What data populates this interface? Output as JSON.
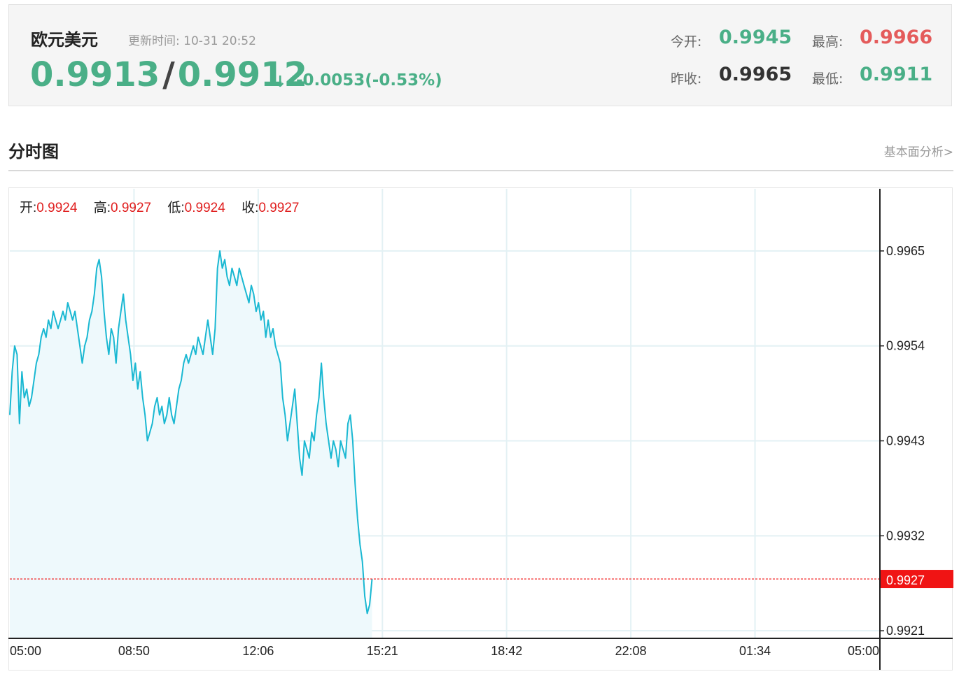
{
  "header": {
    "name": "欧元美元",
    "update_label": "更新时间:",
    "update_time": "10-31 20:52",
    "bid": "0.9913",
    "separator": "/",
    "ask": "0.9912",
    "arrow": "↓",
    "change": "-0.0053(-0.53%)",
    "open_label": "今开:",
    "open": "0.9945",
    "high_label": "最高:",
    "high": "0.9966",
    "prev_close_label": "昨收:",
    "prev_close": "0.9965",
    "low_label": "最低:",
    "low": "0.9911"
  },
  "section": {
    "title": "分时图",
    "link": "基本面分析>"
  },
  "ohlc": {
    "open_label": "开:",
    "open": "0.9924",
    "high_label": "高:",
    "high": "0.9927",
    "low_label": "低:",
    "low": "0.9924",
    "close_label": "收:",
    "close": "0.9927"
  },
  "colors": {
    "line": "#1ab8d2",
    "fill": "#eef9fc",
    "grid": "#e3f1f4",
    "current": "#f01414",
    "up_green": "#4aaf87",
    "high_red": "#e45b5b"
  },
  "chart_data": {
    "type": "line",
    "title": "",
    "xlabel": "",
    "ylabel": "",
    "x_ticks": [
      "05:00",
      "08:50",
      "12:06",
      "15:21",
      "18:42",
      "22:08",
      "01:34",
      "05:00"
    ],
    "y_ticks": [
      0.9965,
      0.9954,
      0.9943,
      0.9932,
      0.9921
    ],
    "y_tick_labels": [
      "0.9965",
      "0.9954",
      "0.9943",
      "0.9932",
      "0.9921"
    ],
    "ylim": [
      0.99202,
      0.99722
    ],
    "current_value": 0.9927,
    "current_label": "0.9927",
    "x_unit": "minutes after 05:00 session start, session length 1440",
    "series": [
      {
        "values": [
          [
            0,
            0.9946
          ],
          [
            4,
            0.9951
          ],
          [
            8,
            0.9954
          ],
          [
            12,
            0.9953
          ],
          [
            16,
            0.9945
          ],
          [
            20,
            0.9951
          ],
          [
            24,
            0.9948
          ],
          [
            28,
            0.9949
          ],
          [
            32,
            0.9947
          ],
          [
            36,
            0.9948
          ],
          [
            40,
            0.995
          ],
          [
            44,
            0.9952
          ],
          [
            48,
            0.9953
          ],
          [
            52,
            0.9955
          ],
          [
            56,
            0.9956
          ],
          [
            60,
            0.9955
          ],
          [
            64,
            0.9957
          ],
          [
            68,
            0.9956
          ],
          [
            72,
            0.9958
          ],
          [
            76,
            0.9957
          ],
          [
            80,
            0.9956
          ],
          [
            84,
            0.9957
          ],
          [
            88,
            0.9958
          ],
          [
            92,
            0.9957
          ],
          [
            96,
            0.9959
          ],
          [
            100,
            0.9958
          ],
          [
            104,
            0.9957
          ],
          [
            108,
            0.9958
          ],
          [
            112,
            0.9956
          ],
          [
            116,
            0.9954
          ],
          [
            120,
            0.9952
          ],
          [
            124,
            0.9954
          ],
          [
            128,
            0.9955
          ],
          [
            132,
            0.9957
          ],
          [
            136,
            0.9958
          ],
          [
            140,
            0.996
          ],
          [
            144,
            0.9963
          ],
          [
            148,
            0.9964
          ],
          [
            152,
            0.9962
          ],
          [
            156,
            0.9958
          ],
          [
            160,
            0.9955
          ],
          [
            164,
            0.9953
          ],
          [
            168,
            0.9956
          ],
          [
            172,
            0.9955
          ],
          [
            176,
            0.9952
          ],
          [
            180,
            0.9956
          ],
          [
            184,
            0.9958
          ],
          [
            188,
            0.996
          ],
          [
            192,
            0.9957
          ],
          [
            196,
            0.9955
          ],
          [
            200,
            0.9953
          ],
          [
            204,
            0.995
          ],
          [
            208,
            0.9952
          ],
          [
            212,
            0.9949
          ],
          [
            216,
            0.9951
          ],
          [
            220,
            0.9948
          ],
          [
            224,
            0.9946
          ],
          [
            228,
            0.9943
          ],
          [
            232,
            0.9944
          ],
          [
            236,
            0.9945
          ],
          [
            240,
            0.9947
          ],
          [
            244,
            0.9948
          ],
          [
            248,
            0.9946
          ],
          [
            252,
            0.9947
          ],
          [
            256,
            0.9945
          ],
          [
            260,
            0.9946
          ],
          [
            264,
            0.9948
          ],
          [
            268,
            0.9946
          ],
          [
            272,
            0.9945
          ],
          [
            276,
            0.9947
          ],
          [
            280,
            0.9949
          ],
          [
            284,
            0.995
          ],
          [
            288,
            0.9952
          ],
          [
            292,
            0.9953
          ],
          [
            296,
            0.9952
          ],
          [
            300,
            0.9953
          ],
          [
            304,
            0.9954
          ],
          [
            308,
            0.9953
          ],
          [
            312,
            0.9955
          ],
          [
            316,
            0.9954
          ],
          [
            320,
            0.9953
          ],
          [
            324,
            0.9955
          ],
          [
            328,
            0.9957
          ],
          [
            332,
            0.9955
          ],
          [
            336,
            0.9953
          ],
          [
            340,
            0.9956
          ],
          [
            344,
            0.9963
          ],
          [
            348,
            0.9965
          ],
          [
            352,
            0.9963
          ],
          [
            356,
            0.9964
          ],
          [
            360,
            0.9962
          ],
          [
            364,
            0.9961
          ],
          [
            368,
            0.9963
          ],
          [
            372,
            0.9962
          ],
          [
            376,
            0.9961
          ],
          [
            380,
            0.9963
          ],
          [
            384,
            0.9962
          ],
          [
            388,
            0.9961
          ],
          [
            392,
            0.996
          ],
          [
            396,
            0.9959
          ],
          [
            400,
            0.9961
          ],
          [
            404,
            0.996
          ],
          [
            408,
            0.9958
          ],
          [
            412,
            0.9959
          ],
          [
            416,
            0.9957
          ],
          [
            420,
            0.9958
          ],
          [
            424,
            0.9955
          ],
          [
            428,
            0.9957
          ],
          [
            432,
            0.9955
          ],
          [
            436,
            0.9956
          ],
          [
            440,
            0.9954
          ],
          [
            444,
            0.9953
          ],
          [
            448,
            0.9952
          ],
          [
            452,
            0.9948
          ],
          [
            456,
            0.9946
          ],
          [
            460,
            0.9943
          ],
          [
            464,
            0.9945
          ],
          [
            468,
            0.9947
          ],
          [
            472,
            0.9949
          ],
          [
            476,
            0.9945
          ],
          [
            480,
            0.9941
          ],
          [
            484,
            0.9939
          ],
          [
            488,
            0.9943
          ],
          [
            492,
            0.9942
          ],
          [
            496,
            0.9941
          ],
          [
            500,
            0.9944
          ],
          [
            504,
            0.9943
          ],
          [
            508,
            0.9946
          ],
          [
            512,
            0.9948
          ],
          [
            516,
            0.9952
          ],
          [
            520,
            0.9948
          ],
          [
            524,
            0.9945
          ],
          [
            528,
            0.9943
          ],
          [
            532,
            0.9941
          ],
          [
            536,
            0.9943
          ],
          [
            540,
            0.9942
          ],
          [
            544,
            0.994
          ],
          [
            548,
            0.9943
          ],
          [
            552,
            0.9942
          ],
          [
            556,
            0.9941
          ],
          [
            560,
            0.9945
          ],
          [
            564,
            0.9946
          ],
          [
            568,
            0.9943
          ],
          [
            572,
            0.9938
          ],
          [
            576,
            0.9934
          ],
          [
            580,
            0.9931
          ],
          [
            584,
            0.9929
          ],
          [
            588,
            0.9925
          ],
          [
            592,
            0.9923
          ],
          [
            596,
            0.9924
          ],
          [
            600,
            0.9927
          ]
        ]
      }
    ]
  }
}
